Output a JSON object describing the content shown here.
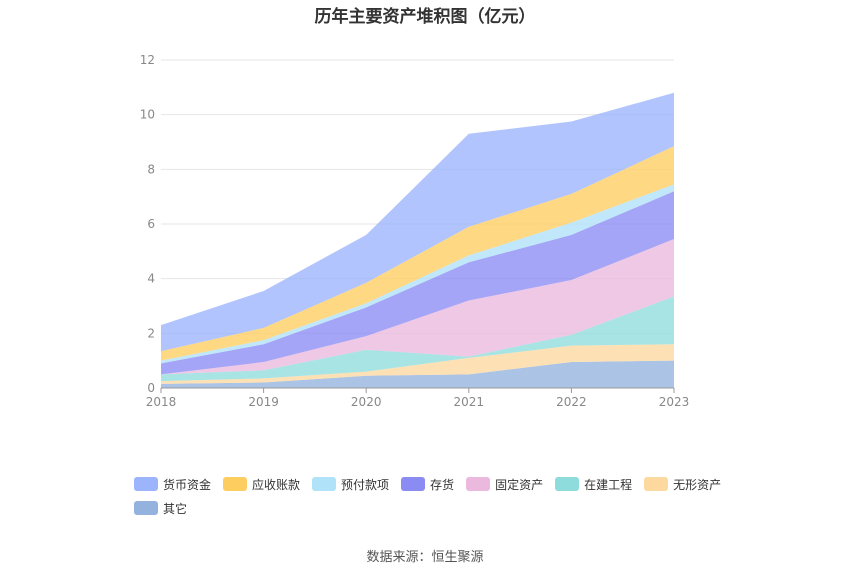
{
  "chart_data": {
    "type": "area",
    "title": "历年主要资产堆积图（亿元）",
    "source": "数据来源：恒生聚源",
    "x": [
      "2018",
      "2019",
      "2020",
      "2021",
      "2022",
      "2023"
    ],
    "ylim": [
      0,
      12
    ],
    "yticks": [
      0,
      2,
      4,
      6,
      8,
      10,
      12
    ],
    "stacked": true,
    "grid": true,
    "legend_position": "bottom",
    "series": [
      {
        "name": "其它",
        "color": "#93b2de",
        "values": [
          0.15,
          0.2,
          0.45,
          0.5,
          0.95,
          1.0
        ]
      },
      {
        "name": "无形资产",
        "color": "#fdd9a0",
        "values": [
          0.1,
          0.15,
          0.15,
          0.6,
          0.6,
          0.6
        ]
      },
      {
        "name": "在建工程",
        "color": "#8fdcdc",
        "values": [
          0.25,
          0.3,
          0.8,
          0.05,
          0.4,
          1.75
        ]
      },
      {
        "name": "固定资产",
        "color": "#ebb9de",
        "values": [
          0.0,
          0.3,
          0.5,
          2.05,
          2.0,
          2.1
        ]
      },
      {
        "name": "存货",
        "color": "#8b8cf3",
        "values": [
          0.4,
          0.65,
          1.05,
          1.4,
          1.65,
          1.75
        ]
      },
      {
        "name": "预付款项",
        "color": "#b0e2f9",
        "values": [
          0.1,
          0.15,
          0.15,
          0.25,
          0.45,
          0.25
        ]
      },
      {
        "name": "应收账款",
        "color": "#fecd5f",
        "values": [
          0.35,
          0.45,
          0.75,
          1.05,
          1.05,
          1.4
        ]
      },
      {
        "name": "货币资金",
        "color": "#9bb4fc",
        "values": [
          0.95,
          1.35,
          1.75,
          3.4,
          2.65,
          1.95
        ]
      }
    ]
  }
}
